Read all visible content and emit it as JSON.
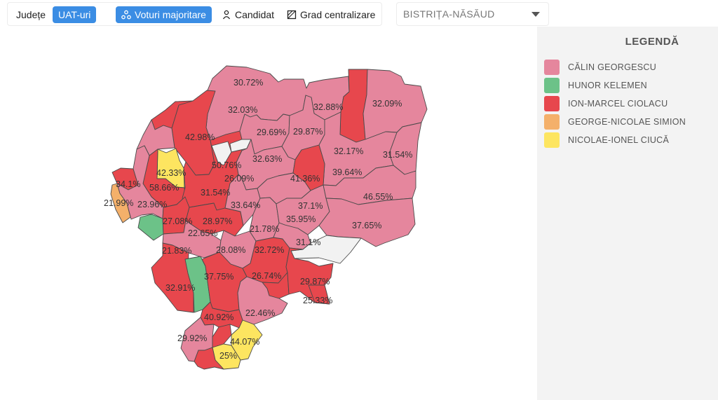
{
  "toolbar": {
    "judete": "Județe",
    "uat": "UAT-uri",
    "voturi": "Voturi majoritare",
    "candidat": "Candidat",
    "grad": "Grad centralizare"
  },
  "county_select": {
    "value": "BISTRIȚA-NĂSĂUD"
  },
  "legend": {
    "title": "LEGENDĂ",
    "items": [
      {
        "label": "CĂLIN GEORGESCU",
        "color": "#e5869d"
      },
      {
        "label": "HUNOR KELEMEN",
        "color": "#6cc288"
      },
      {
        "label": "ION-MARCEL CIOLACU",
        "color": "#e7474d"
      },
      {
        "label": "GEORGE-NICOLAE SIMION",
        "color": "#f4b06a"
      },
      {
        "label": "NICOLAE-IONEL CIUCĂ",
        "color": "#fde560"
      }
    ]
  },
  "map": {
    "colors": {
      "georgescu": "#e5869d",
      "kelemen": "#6cc288",
      "ciolacu": "#e7474d",
      "simion": "#f4b06a",
      "ciuca": "#fde560",
      "no_data": "#f2f2f2"
    },
    "labels": [
      {
        "id": "l1",
        "text": "30.72%"
      },
      {
        "id": "l2",
        "text": "32.03%"
      },
      {
        "id": "l3",
        "text": "32.88%"
      },
      {
        "id": "l4",
        "text": "32.09%"
      },
      {
        "id": "l5",
        "text": "42.98%"
      },
      {
        "id": "l6",
        "text": "29.69%"
      },
      {
        "id": "l7",
        "text": "29.87%"
      },
      {
        "id": "l8",
        "text": "32.17%"
      },
      {
        "id": "l9",
        "text": "31.54%"
      },
      {
        "id": "l10",
        "text": "42.33%"
      },
      {
        "id": "l11",
        "text": "50.76%"
      },
      {
        "id": "l12",
        "text": "32.63%"
      },
      {
        "id": "l13",
        "text": "39.64%"
      },
      {
        "id": "l14",
        "text": "34.1%"
      },
      {
        "id": "l15",
        "text": "58.66%"
      },
      {
        "id": "l16",
        "text": "26.09%"
      },
      {
        "id": "l17",
        "text": "41.36%"
      },
      {
        "id": "l18",
        "text": "31.54%"
      },
      {
        "id": "l19",
        "text": "46.55%"
      },
      {
        "id": "l20",
        "text": "21.99%"
      },
      {
        "id": "l21",
        "text": "23.96%"
      },
      {
        "id": "l22",
        "text": "33.64%"
      },
      {
        "id": "l23",
        "text": "37.1%"
      },
      {
        "id": "l24",
        "text": "27.08%"
      },
      {
        "id": "l25",
        "text": "28.97%"
      },
      {
        "id": "l26",
        "text": "35.95%"
      },
      {
        "id": "l27",
        "text": "37.65%"
      },
      {
        "id": "l28",
        "text": "22.65%"
      },
      {
        "id": "l29",
        "text": "21.78%"
      },
      {
        "id": "l30",
        "text": "31.1%"
      },
      {
        "id": "l31",
        "text": "21.83%"
      },
      {
        "id": "l32",
        "text": "28.08%"
      },
      {
        "id": "l33",
        "text": "32.72%"
      },
      {
        "id": "l34",
        "text": "37.75%"
      },
      {
        "id": "l35",
        "text": "26.74%"
      },
      {
        "id": "l36",
        "text": "29.87%"
      },
      {
        "id": "l37",
        "text": "32.91%"
      },
      {
        "id": "l38",
        "text": "25.33%"
      },
      {
        "id": "l39",
        "text": "22.46%"
      },
      {
        "id": "l40",
        "text": "40.92%"
      },
      {
        "id": "l41",
        "text": "29.92%"
      },
      {
        "id": "l42",
        "text": "44.07%"
      },
      {
        "id": "l43",
        "text": "25%"
      }
    ]
  }
}
